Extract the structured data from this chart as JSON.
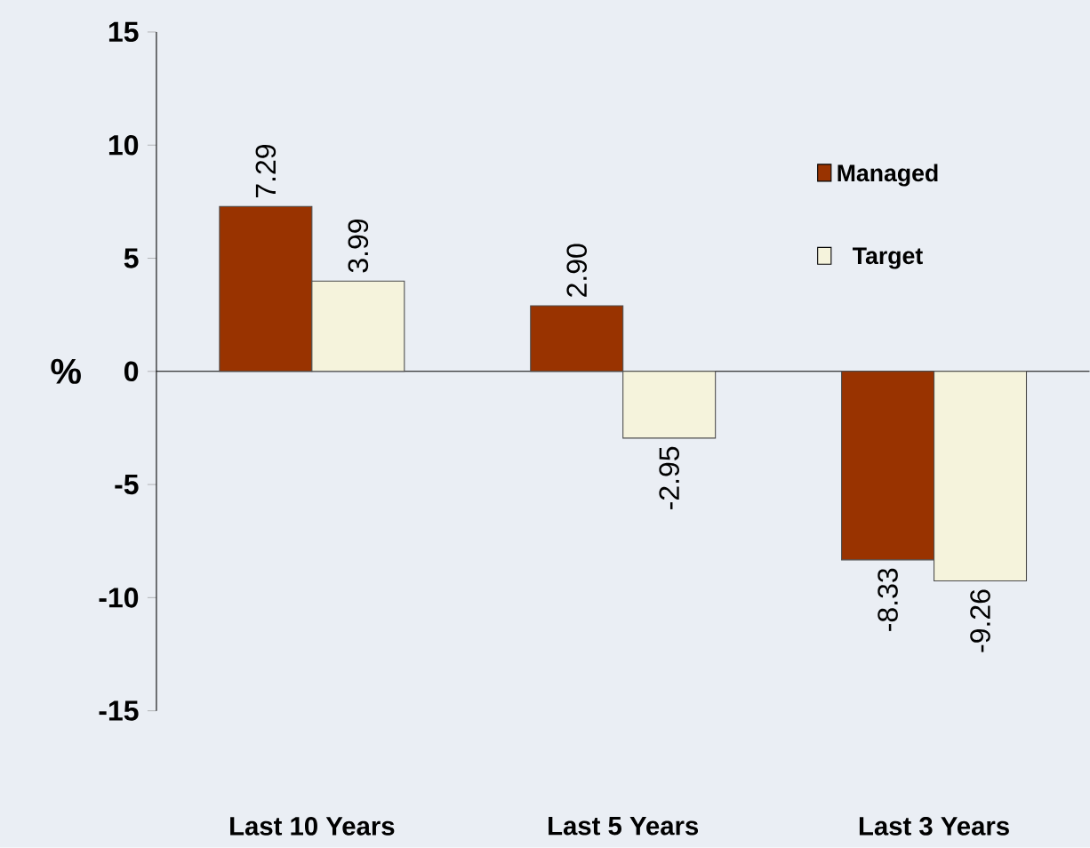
{
  "chart_data": {
    "type": "bar",
    "categories": [
      "Last 10 Years",
      "Last 5 Years",
      "Last 3 Years"
    ],
    "ylabel": "%",
    "ylim": [
      -15,
      15
    ],
    "yticks": [
      -15,
      -10,
      -5,
      0,
      5,
      10,
      15
    ],
    "legend": "top right",
    "series": [
      {
        "name": "Managed",
        "color": "#993300",
        "values": [
          7.29,
          2.9,
          -8.33
        ],
        "value_labels": [
          "7.29",
          "2.90",
          "-8.33"
        ]
      },
      {
        "name": "Target",
        "color": "#f5f3dc",
        "values": [
          3.99,
          -2.95,
          -9.26
        ],
        "value_labels": [
          "3.99",
          "-2.95",
          "-9.26"
        ]
      }
    ]
  }
}
